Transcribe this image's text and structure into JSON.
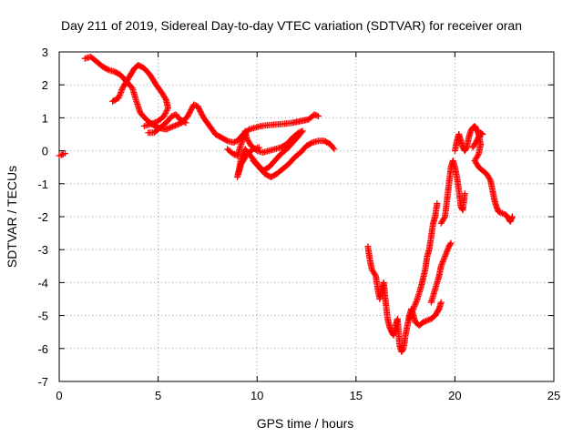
{
  "chart_data": {
    "type": "scatter",
    "title": "Day 211 of 2019, Sidereal Day-to-day VTEC variation (SDTVAR) for receiver oran",
    "xlabel": "GPS time / hours",
    "ylabel": "SDTVAR / TECUs",
    "xlim": [
      0,
      25
    ],
    "ylim": [
      -7,
      3
    ],
    "xticks": [
      0,
      5,
      10,
      15,
      20,
      25
    ],
    "yticks": [
      -7,
      -6,
      -5,
      -4,
      -3,
      -2,
      -1,
      0,
      1,
      2,
      3
    ],
    "grid": true,
    "marker": "+",
    "color": "#ff0000",
    "series": [
      {
        "name": "SDTVAR",
        "segments": [
          [
            [
              0.0,
              -0.15
            ],
            [
              0.1,
              -0.13
            ],
            [
              0.2,
              -0.1
            ],
            [
              0.3,
              -0.08
            ]
          ],
          [
            [
              1.3,
              2.8
            ],
            [
              1.6,
              2.85
            ],
            [
              1.9,
              2.7
            ],
            [
              2.2,
              2.55
            ],
            [
              2.5,
              2.45
            ],
            [
              2.8,
              2.4
            ],
            [
              3.1,
              2.3
            ],
            [
              3.4,
              2.1
            ],
            [
              3.7,
              1.9
            ],
            [
              3.9,
              1.5
            ],
            [
              4.1,
              1.15
            ],
            [
              4.4,
              0.95
            ],
            [
              4.7,
              0.8
            ],
            [
              5.0,
              0.7
            ],
            [
              5.4,
              0.65
            ],
            [
              5.8,
              0.75
            ],
            [
              6.2,
              0.85
            ],
            [
              6.5,
              1.05
            ],
            [
              6.8,
              1.4
            ],
            [
              7.0,
              1.35
            ],
            [
              7.3,
              1.0
            ],
            [
              7.6,
              0.75
            ],
            [
              7.9,
              0.5
            ],
            [
              8.2,
              0.4
            ],
            [
              8.5,
              0.3
            ],
            [
              8.8,
              0.25
            ],
            [
              9.0,
              0.3
            ],
            [
              9.3,
              0.5
            ],
            [
              9.6,
              0.65
            ],
            [
              9.9,
              0.7
            ],
            [
              10.2,
              0.75
            ],
            [
              10.6,
              0.78
            ],
            [
              11.0,
              0.8
            ],
            [
              11.4,
              0.82
            ],
            [
              11.8,
              0.85
            ],
            [
              12.2,
              0.9
            ],
            [
              12.6,
              0.95
            ],
            [
              12.9,
              1.1
            ],
            [
              13.1,
              1.05
            ]
          ],
          [
            [
              2.7,
              1.5
            ],
            [
              3.0,
              1.6
            ],
            [
              3.2,
              1.9
            ],
            [
              3.5,
              2.2
            ],
            [
              3.8,
              2.5
            ],
            [
              4.0,
              2.6
            ],
            [
              4.3,
              2.5
            ],
            [
              4.6,
              2.3
            ],
            [
              4.9,
              2.0
            ],
            [
              5.2,
              1.75
            ],
            [
              5.4,
              1.55
            ],
            [
              5.5,
              1.3
            ],
            [
              5.3,
              1.05
            ],
            [
              5.0,
              0.9
            ],
            [
              4.6,
              0.8
            ],
            [
              4.3,
              0.75
            ]
          ],
          [
            [
              4.5,
              0.55
            ],
            [
              4.8,
              0.55
            ],
            [
              5.1,
              0.7
            ],
            [
              5.4,
              0.85
            ],
            [
              5.7,
              1.05
            ],
            [
              5.9,
              1.1
            ],
            [
              6.1,
              0.95
            ],
            [
              6.4,
              0.85
            ]
          ],
          [
            [
              8.5,
              0.05
            ],
            [
              8.8,
              -0.1
            ],
            [
              9.0,
              -0.15
            ],
            [
              9.2,
              0.2
            ],
            [
              9.4,
              0.6
            ],
            [
              9.5,
              0.35
            ],
            [
              9.7,
              0.15
            ],
            [
              10.0,
              0.0
            ],
            [
              10.3,
              -0.05
            ],
            [
              10.6,
              0.0
            ],
            [
              10.9,
              0.05
            ],
            [
              11.2,
              0.1
            ],
            [
              11.5,
              0.2
            ],
            [
              11.8,
              0.4
            ],
            [
              12.1,
              0.55
            ],
            [
              12.3,
              0.6
            ],
            [
              12.1,
              0.45
            ],
            [
              11.8,
              0.25
            ],
            [
              11.5,
              0.05
            ],
            [
              11.2,
              -0.1
            ],
            [
              10.9,
              -0.3
            ],
            [
              10.6,
              -0.5
            ],
            [
              10.3,
              -0.6
            ],
            [
              10.0,
              -0.4
            ],
            [
              9.8,
              -0.25
            ],
            [
              9.6,
              -0.1
            ],
            [
              9.4,
              0.05
            ],
            [
              9.2,
              -0.2
            ],
            [
              9.1,
              -0.55
            ],
            [
              9.0,
              -0.8
            ],
            [
              9.2,
              -0.4
            ],
            [
              9.5,
              -0.1
            ],
            [
              9.8,
              0.05
            ],
            [
              10.1,
              0.1
            ]
          ],
          [
            [
              9.8,
              -0.3
            ],
            [
              10.1,
              -0.5
            ],
            [
              10.4,
              -0.7
            ],
            [
              10.7,
              -0.8
            ],
            [
              11.0,
              -0.7
            ],
            [
              11.3,
              -0.55
            ],
            [
              11.6,
              -0.4
            ],
            [
              11.9,
              -0.2
            ],
            [
              12.2,
              -0.05
            ],
            [
              12.5,
              0.15
            ],
            [
              12.8,
              0.25
            ],
            [
              13.1,
              0.3
            ],
            [
              13.4,
              0.3
            ],
            [
              13.7,
              0.2
            ],
            [
              13.9,
              0.05
            ]
          ],
          [
            [
              15.6,
              -2.9
            ],
            [
              15.7,
              -3.3
            ],
            [
              15.8,
              -3.6
            ],
            [
              16.0,
              -3.8
            ],
            [
              16.1,
              -4.2
            ],
            [
              16.2,
              -4.5
            ],
            [
              16.3,
              -4.2
            ],
            [
              16.4,
              -4.0
            ],
            [
              16.5,
              -4.6
            ],
            [
              16.6,
              -5.1
            ],
            [
              16.7,
              -5.35
            ],
            [
              16.8,
              -5.5
            ],
            [
              16.9,
              -5.6
            ],
            [
              17.0,
              -5.3
            ],
            [
              17.1,
              -5.1
            ],
            [
              17.2,
              -5.9
            ],
            [
              17.3,
              -6.1
            ],
            [
              17.4,
              -6.0
            ],
            [
              17.5,
              -5.6
            ],
            [
              17.6,
              -5.3
            ],
            [
              17.7,
              -5.0
            ],
            [
              17.8,
              -4.8
            ],
            [
              17.9,
              -5.0
            ],
            [
              18.0,
              -5.2
            ],
            [
              18.2,
              -5.3
            ],
            [
              18.4,
              -5.2
            ],
            [
              18.6,
              -5.15
            ],
            [
              18.8,
              -5.1
            ],
            [
              19.0,
              -5.0
            ],
            [
              19.1,
              -4.9
            ],
            [
              19.2,
              -4.8
            ],
            [
              19.3,
              -4.6
            ]
          ],
          [
            [
              17.7,
              -5.1
            ],
            [
              17.9,
              -4.8
            ],
            [
              18.1,
              -4.5
            ],
            [
              18.3,
              -4.1
            ],
            [
              18.5,
              -3.6
            ],
            [
              18.6,
              -3.2
            ],
            [
              18.7,
              -3.0
            ],
            [
              18.8,
              -2.6
            ],
            [
              18.9,
              -2.2
            ],
            [
              19.0,
              -2.0
            ],
            [
              19.1,
              -1.6
            ]
          ],
          [
            [
              18.8,
              -4.6
            ],
            [
              19.0,
              -4.2
            ],
            [
              19.2,
              -3.8
            ],
            [
              19.3,
              -3.5
            ],
            [
              19.5,
              -3.2
            ],
            [
              19.7,
              -2.9
            ],
            [
              19.8,
              -2.8
            ]
          ],
          [
            [
              19.3,
              -2.2
            ],
            [
              19.5,
              -2.0
            ],
            [
              19.6,
              -1.5
            ],
            [
              19.7,
              -1.0
            ],
            [
              19.8,
              -0.5
            ],
            [
              19.9,
              -0.3
            ],
            [
              20.0,
              -0.5
            ],
            [
              20.1,
              -0.8
            ],
            [
              20.2,
              -1.2
            ],
            [
              20.3,
              -1.7
            ],
            [
              20.4,
              -1.8
            ],
            [
              20.5,
              -1.3
            ]
          ],
          [
            [
              20.0,
              0.0
            ],
            [
              20.1,
              0.3
            ],
            [
              20.2,
              0.5
            ],
            [
              20.3,
              0.3
            ],
            [
              20.4,
              0.1
            ],
            [
              20.5,
              0.0
            ],
            [
              20.6,
              0.1
            ],
            [
              20.7,
              0.4
            ],
            [
              20.8,
              0.6
            ],
            [
              20.9,
              0.7
            ],
            [
              21.0,
              0.75
            ],
            [
              21.1,
              0.65
            ],
            [
              21.2,
              0.5
            ],
            [
              21.3,
              0.2
            ],
            [
              21.2,
              -0.1
            ],
            [
              21.0,
              -0.3
            ],
            [
              21.2,
              -0.5
            ],
            [
              21.4,
              -0.6
            ],
            [
              21.6,
              -0.7
            ],
            [
              21.8,
              -0.9
            ],
            [
              21.9,
              -1.2
            ],
            [
              22.0,
              -1.5
            ],
            [
              22.1,
              -1.7
            ],
            [
              22.2,
              -1.85
            ],
            [
              22.4,
              -1.9
            ],
            [
              22.6,
              -1.95
            ],
            [
              22.7,
              -2.05
            ],
            [
              22.8,
              -2.15
            ],
            [
              22.9,
              -2.0
            ]
          ],
          [
            [
              20.9,
              0.1
            ],
            [
              21.1,
              0.3
            ],
            [
              21.3,
              0.55
            ],
            [
              21.4,
              0.5
            ]
          ]
        ]
      }
    ]
  }
}
